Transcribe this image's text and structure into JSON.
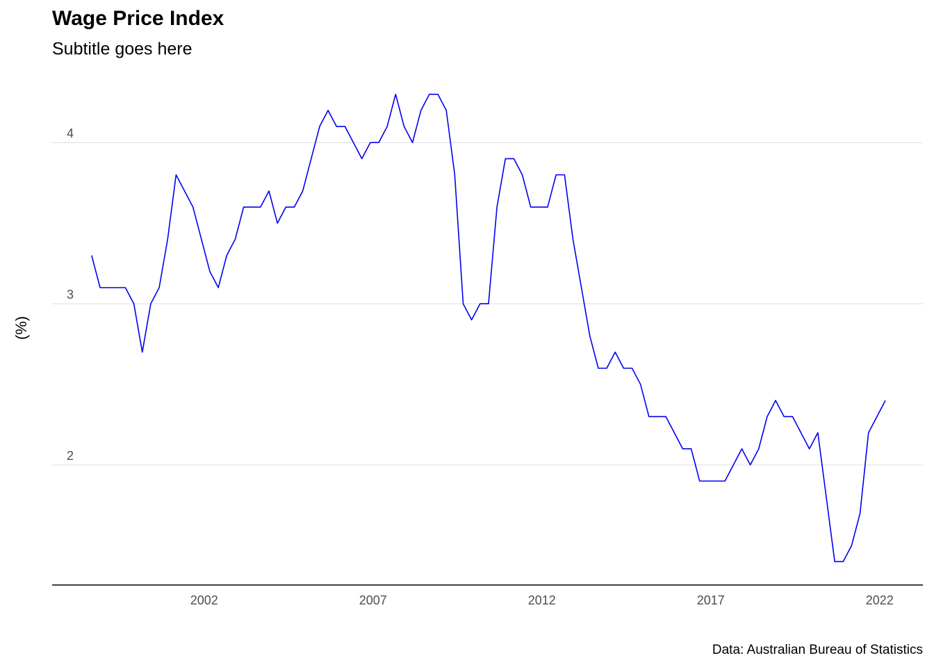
{
  "chart_data": {
    "type": "line",
    "title": "Wage Price Index",
    "subtitle": "Subtitle goes here",
    "y_label": "(%)",
    "caption": "Data: Australian Bureau of Statistics",
    "color": "#0000ee",
    "grid": true,
    "x": [
      1998.67,
      1998.92,
      1999.17,
      1999.42,
      1999.67,
      1999.92,
      2000.17,
      2000.42,
      2000.67,
      2000.92,
      2001.17,
      2001.42,
      2001.67,
      2001.92,
      2002.17,
      2002.42,
      2002.67,
      2002.92,
      2003.17,
      2003.42,
      2003.67,
      2003.92,
      2004.17,
      2004.42,
      2004.67,
      2004.92,
      2005.17,
      2005.42,
      2005.67,
      2005.92,
      2006.17,
      2006.42,
      2006.67,
      2006.92,
      2007.17,
      2007.42,
      2007.67,
      2007.92,
      2008.17,
      2008.42,
      2008.67,
      2008.92,
      2009.17,
      2009.42,
      2009.67,
      2009.92,
      2010.17,
      2010.42,
      2010.67,
      2010.92,
      2011.17,
      2011.42,
      2011.67,
      2011.92,
      2012.17,
      2012.42,
      2012.67,
      2012.92,
      2013.17,
      2013.42,
      2013.67,
      2013.92,
      2014.17,
      2014.42,
      2014.67,
      2014.92,
      2015.17,
      2015.42,
      2015.67,
      2015.92,
      2016.17,
      2016.42,
      2016.67,
      2016.92,
      2017.17,
      2017.42,
      2017.67,
      2017.92,
      2018.17,
      2018.42,
      2018.67,
      2018.92,
      2019.17,
      2019.42,
      2019.67,
      2019.92,
      2020.17,
      2020.42,
      2020.67,
      2020.92,
      2021.17,
      2021.42,
      2021.67,
      2021.92,
      2022.17
    ],
    "values": [
      3.3,
      3.1,
      3.1,
      3.1,
      3.1,
      3.0,
      2.7,
      3.0,
      3.1,
      3.4,
      3.8,
      3.7,
      3.6,
      3.4,
      3.2,
      3.1,
      3.3,
      3.4,
      3.6,
      3.6,
      3.6,
      3.7,
      3.5,
      3.6,
      3.6,
      3.7,
      3.9,
      4.1,
      4.2,
      4.1,
      4.1,
      4.0,
      3.9,
      4.0,
      4.0,
      4.1,
      4.3,
      4.1,
      4.0,
      4.2,
      4.3,
      4.3,
      4.2,
      3.8,
      3.0,
      2.9,
      3.0,
      3.0,
      3.6,
      3.9,
      3.9,
      3.8,
      3.6,
      3.6,
      3.6,
      3.8,
      3.8,
      3.4,
      3.1,
      2.8,
      2.6,
      2.6,
      2.7,
      2.6,
      2.6,
      2.5,
      2.3,
      2.3,
      2.3,
      2.2,
      2.1,
      2.1,
      1.9,
      1.9,
      1.9,
      1.9,
      2.0,
      2.1,
      2.0,
      2.1,
      2.3,
      2.4,
      2.3,
      2.3,
      2.2,
      2.1,
      2.2,
      1.8,
      1.4,
      1.4,
      1.5,
      1.7,
      2.2,
      2.3,
      2.4
    ],
    "xlim": [
      1997.5,
      2023.28
    ],
    "xticks": [
      2002,
      2007,
      2012,
      2017,
      2022
    ],
    "ylim": [
      1.255,
      4.445
    ],
    "yticks": [
      2,
      3,
      4
    ]
  }
}
